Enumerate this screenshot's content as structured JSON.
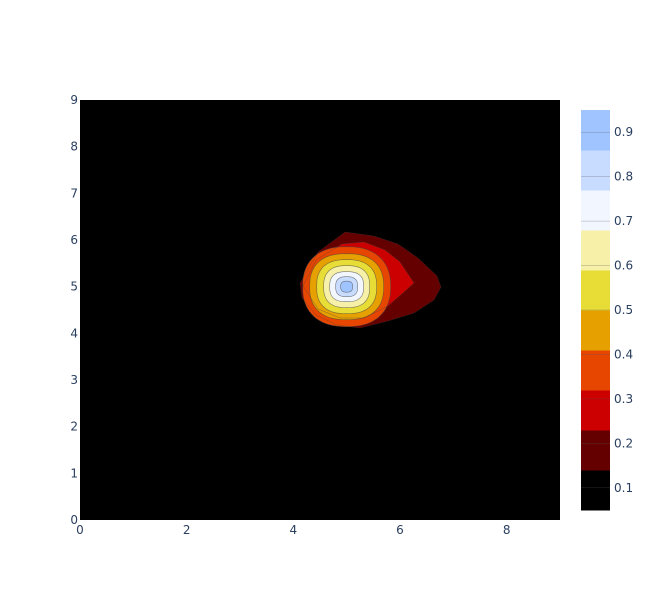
{
  "chart_data": {
    "type": "contour",
    "title": "",
    "xlabel": "",
    "ylabel": "",
    "xlim": [
      0,
      9
    ],
    "ylim": [
      0,
      9
    ],
    "x_ticks": [
      0,
      2,
      4,
      6,
      8
    ],
    "x_tick_labels": [
      "0",
      "2",
      "4",
      "6",
      "8"
    ],
    "y_ticks": [
      0,
      1,
      2,
      3,
      4,
      5,
      6,
      7,
      8,
      9
    ],
    "y_tick_labels": [
      "0",
      "1",
      "2",
      "3",
      "4",
      "5",
      "6",
      "7",
      "8",
      "9"
    ],
    "peak": {
      "x": 5,
      "y": 5,
      "value": 1.0
    },
    "secondary": {
      "x": 6.2,
      "y": 5,
      "value": 0.2
    },
    "contour_levels": [
      0.05,
      0.15,
      0.25,
      0.35,
      0.45,
      0.55,
      0.65,
      0.75,
      0.85,
      0.95
    ],
    "colorbar": {
      "range": [
        0.05,
        0.95
      ],
      "tick_values": [
        0.1,
        0.2,
        0.3,
        0.4,
        0.5,
        0.6,
        0.7,
        0.8,
        0.9
      ],
      "tick_labels": [
        "0.1",
        "0.2",
        "0.3",
        "0.4",
        "0.5",
        "0.6",
        "0.7",
        "0.8",
        "0.9"
      ],
      "colors": [
        "#000000",
        "#640000",
        "#cc0000",
        "#e64600",
        "#e6a000",
        "#e8dc36",
        "#f6f0a8",
        "#f2f6ff",
        "#c8dcff",
        "#a0c4ff"
      ]
    }
  }
}
